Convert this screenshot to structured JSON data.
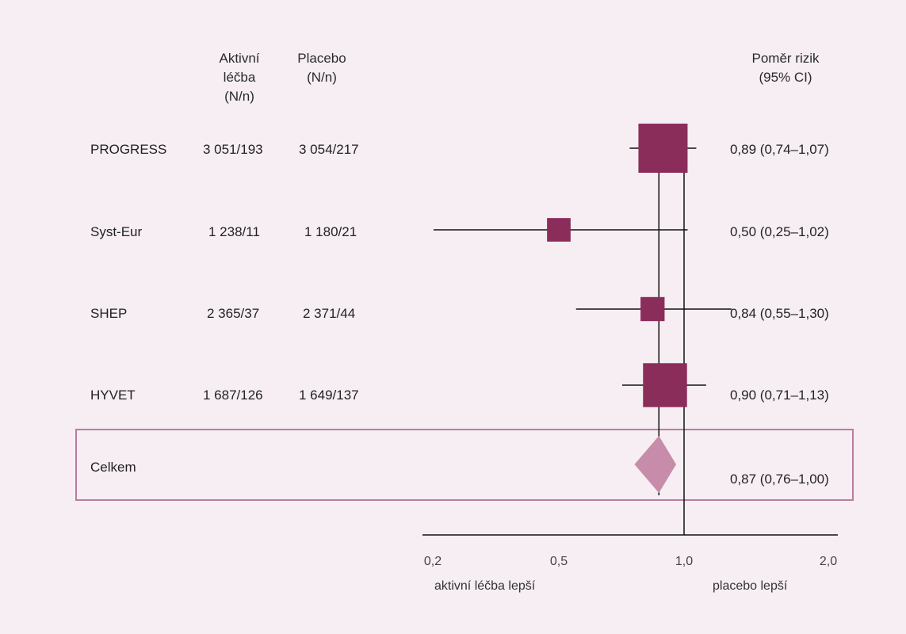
{
  "colors": {
    "background": "#f6eef3",
    "study_marker": "#8b2d5b",
    "overall_diamond": "#c78ca9",
    "overall_box_border": "#b87d9f"
  },
  "headers": {
    "active_line1": "Aktivní",
    "active_line2": "léčba",
    "active_line3": "(N/n)",
    "placebo_line1": "Placebo",
    "placebo_line2": "(N/n)",
    "ratio_line1": "Poměr rizik",
    "ratio_line2": "(95% CI)"
  },
  "rows": [
    {
      "study": "PROGRESS",
      "active": "3 051/193",
      "placebo": "3 054/217",
      "ratio_text": "0,89 (0,74–1,07)"
    },
    {
      "study": "Syst-Eur",
      "active": "1 238/11",
      "placebo": "1 180/21",
      "ratio_text": "0,50 (0,25–1,02)"
    },
    {
      "study": "SHEP",
      "active": "2 365/37",
      "placebo": "2 371/44",
      "ratio_text": "0,84 (0,55–1,30)"
    },
    {
      "study": "HYVET",
      "active": "1 687/126",
      "placebo": "1 649/137",
      "ratio_text": "0,90 (0,71–1,13)"
    }
  ],
  "overall": {
    "label": "Celkem",
    "ratio_text": "0,87 (0,76–1,00)"
  },
  "axis": {
    "tick_labels": [
      "0,2",
      "0,5",
      "1,0",
      "2,0"
    ],
    "left_label": "aktivní léčba lepší",
    "right_label": "placebo lepší"
  },
  "chart_data": {
    "type": "forest",
    "scale": "log",
    "xlim": [
      0.2,
      2.0
    ],
    "ticks": [
      0.2,
      0.5,
      1.0,
      2.0
    ],
    "reference_line": 1.0,
    "pooled_line": 0.87,
    "studies": [
      {
        "name": "PROGRESS",
        "hr": 0.89,
        "lo": 0.74,
        "hi": 1.07,
        "weight": 1.0
      },
      {
        "name": "Syst-Eur",
        "hr": 0.5,
        "lo": 0.25,
        "hi": 1.02,
        "weight": 0.23
      },
      {
        "name": "SHEP",
        "hr": 0.84,
        "lo": 0.55,
        "hi": 1.3,
        "weight": 0.24
      },
      {
        "name": "HYVET",
        "hr": 0.9,
        "lo": 0.71,
        "hi": 1.13,
        "weight": 0.8
      }
    ],
    "overall": {
      "name": "Celkem",
      "hr": 0.87,
      "lo": 0.76,
      "hi": 1.0
    }
  }
}
